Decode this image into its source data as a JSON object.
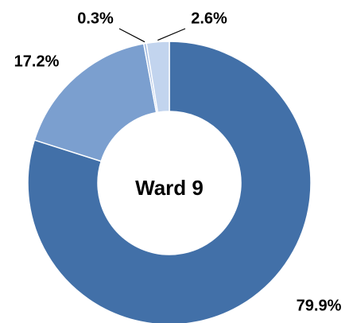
{
  "chart_data": {
    "type": "donut",
    "title": "Ward 9",
    "values": [
      79.9,
      17.2,
      0.3,
      2.6
    ],
    "value_labels": [
      "79.9%",
      "17.2%",
      "0.3%",
      "2.6%"
    ],
    "colors": [
      "#4270a8",
      "#7b9fcf",
      "#a3bbe0",
      "#c2d4ee"
    ]
  }
}
